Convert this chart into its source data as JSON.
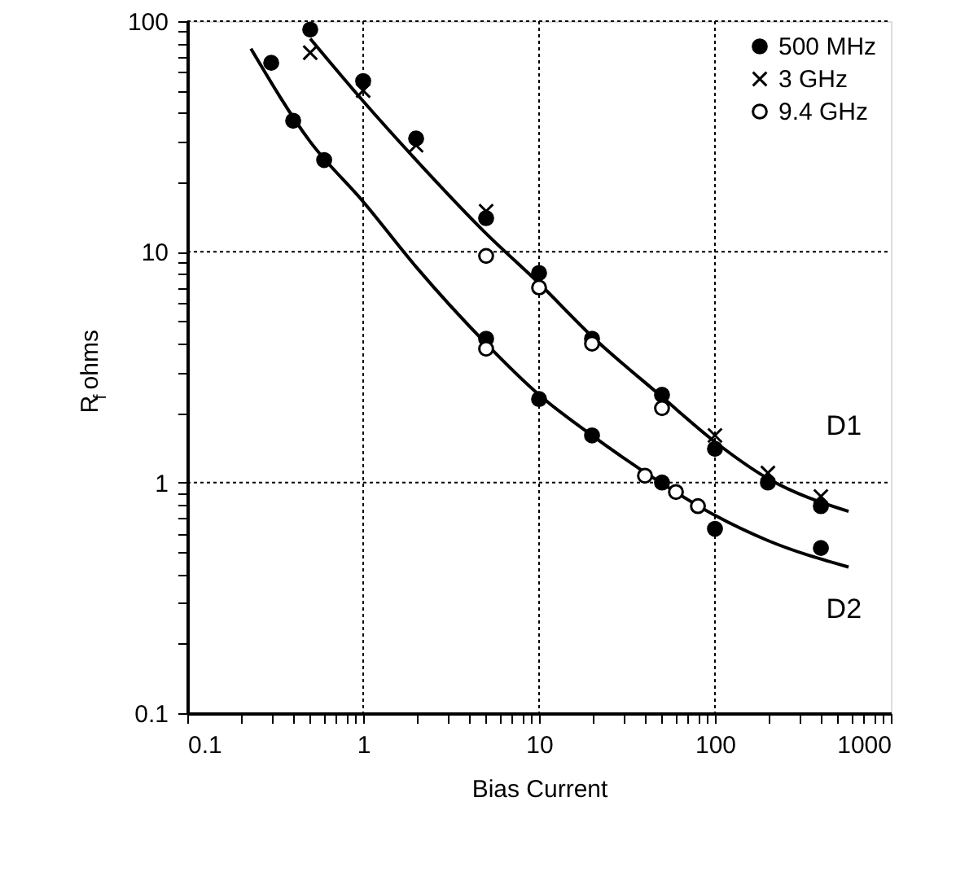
{
  "chart_data": {
    "type": "scatter",
    "xlabel": "Bias Current",
    "ylabel": "R$_{f}$ ohms",
    "log": "xy",
    "grid": true,
    "legend": "top right",
    "xlim": [
      0.1,
      1000
    ],
    "ylim": [
      0.1,
      100
    ],
    "xticks": [
      0.1,
      {
        "value": 0.2,
        "label": null
      },
      {
        "value": 0.3,
        "label": null
      },
      {
        "value": 0.4,
        "label": null
      },
      {
        "value": 0.5,
        "label": null
      },
      {
        "value": 0.6,
        "label": null
      },
      {
        "value": 0.7,
        "label": null
      },
      {
        "value": 0.8,
        "label": null
      },
      {
        "value": 0.9,
        "label": null
      },
      1,
      {
        "value": 2,
        "label": null
      },
      {
        "value": 3,
        "label": null
      },
      {
        "value": 4,
        "label": null
      },
      {
        "value": 5,
        "label": null
      },
      {
        "value": 6,
        "label": null
      },
      {
        "value": 7,
        "label": null
      },
      {
        "value": 8,
        "label": null
      },
      {
        "value": 9,
        "label": null
      },
      10,
      {
        "value": 20,
        "label": null
      },
      {
        "value": 30,
        "label": null
      },
      {
        "value": 40,
        "label": null
      },
      {
        "value": 50,
        "label": null
      },
      {
        "value": 60,
        "label": null
      },
      {
        "value": 70,
        "label": null
      },
      {
        "value": 80,
        "label": null
      },
      {
        "value": 90,
        "label": null
      },
      100,
      {
        "value": 200,
        "label": null
      },
      {
        "value": 300,
        "label": null
      },
      {
        "value": 400,
        "label": null
      },
      {
        "value": 500,
        "label": null
      },
      {
        "value": 600,
        "label": null
      },
      {
        "value": 700,
        "label": null
      },
      {
        "value": 800,
        "label": null
      },
      {
        "value": 900,
        "label": null
      },
      {
        "value": 1000,
        "label": "1000"
      }
    ],
    "yticks": [
      0.1,
      {
        "value": 0.2,
        "label": null
      },
      {
        "value": 0.3,
        "label": null
      },
      {
        "value": 0.4,
        "label": null
      },
      {
        "value": 0.5,
        "label": null
      },
      {
        "value": 0.6,
        "label": null
      },
      {
        "value": 0.7,
        "label": null
      },
      {
        "value": 0.8,
        "label": null
      },
      {
        "value": 0.9,
        "label": null
      },
      1,
      {
        "value": 2,
        "label": null
      },
      {
        "value": 3,
        "label": null
      },
      {
        "value": 4,
        "label": null
      },
      {
        "value": 5,
        "label": null
      },
      {
        "value": 6,
        "label": null
      },
      {
        "value": 7,
        "label": null
      },
      {
        "value": 8,
        "label": null
      },
      {
        "value": 9,
        "label": null
      },
      10,
      {
        "value": 20,
        "label": null
      },
      {
        "value": 30,
        "label": null
      },
      {
        "value": 40,
        "label": null
      },
      {
        "value": 50,
        "label": null
      },
      {
        "value": 60,
        "label": null
      },
      {
        "value": 70,
        "label": null
      },
      {
        "value": 80,
        "label": null
      },
      {
        "value": 90,
        "label": null
      },
      100
    ],
    "series": [
      {
        "name": "500 MHz",
        "marker": "circle",
        "color": "#000000",
        "x": [
          0.3,
          0.4,
          0.5,
          0.6,
          1,
          2,
          5,
          5,
          10,
          10,
          20,
          20,
          50,
          50,
          100,
          100,
          200,
          400,
          400
        ],
        "values": [
          66,
          37,
          92,
          25,
          55,
          31,
          14,
          4.2,
          8.1,
          2.3,
          4.2,
          1.6,
          2.4,
          1.0,
          1.4,
          0.63,
          1.0,
          0.79,
          0.52
        ]
      },
      {
        "name": "3 GHz",
        "marker": "cross",
        "color": "#000000",
        "x": [
          0.5,
          1,
          2,
          5,
          100,
          200,
          400
        ],
        "values": [
          73,
          50,
          29,
          15,
          1.6,
          1.1,
          0.87
        ]
      },
      {
        "name": "9.4 GHz",
        "marker": "circle",
        "color": "#ffffff",
        "x": [
          5,
          5,
          10,
          20,
          40,
          50,
          60,
          80
        ],
        "values": [
          9.6,
          3.8,
          7.0,
          4.0,
          1.07,
          2.1,
          0.91,
          0.79
        ]
      },
      {
        "type": "line",
        "line_style": "solid",
        "color": "#000000",
        "x": [
          0.5,
          1,
          2,
          5,
          10,
          20,
          50,
          100,
          200,
          575
        ],
        "values": [
          84,
          45,
          25,
          12,
          7.3,
          4.3,
          2.35,
          1.5,
          1.04,
          0.75
        ]
      },
      {
        "type": "line",
        "line_style": "solid",
        "color": "#000000",
        "x": [
          0.23,
          0.5,
          1,
          2,
          5,
          10,
          20,
          50,
          100,
          200,
          575
        ],
        "values": [
          76,
          30,
          16.5,
          8.6,
          4.0,
          2.4,
          1.6,
          0.99,
          0.72,
          0.56,
          0.43
        ]
      }
    ],
    "annotations": [
      "D1",
      "D2"
    ]
  }
}
